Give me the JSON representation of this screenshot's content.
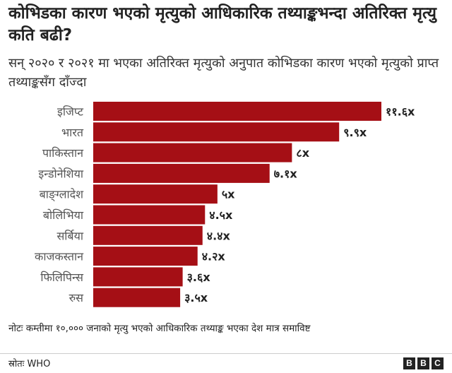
{
  "title": "कोभिडका कारण भएको मृत्युको आधिकारिक तथ्याङ्कभन्दा अतिरिक्त मृत्यु कति बढी?",
  "subtitle": "सन् २०२० र २०२१ मा भएका अतिरिक्त मृत्युको अनुपात कोभिडका कारण भएको मृत्युको प्राप्त तथ्याङ्कसँग दाँज्दा",
  "note": "नोटः कम्तीमा १०,००० जनाको मृत्यु भएको आधिकारिक तथ्याङ्क भएका देश मात्र समाविष्ट",
  "source": "स्रोतः WHO",
  "logo": [
    "B",
    "B",
    "C"
  ],
  "colors": {
    "bar": "#A50F15"
  },
  "chart_data": {
    "type": "bar",
    "orientation": "horizontal",
    "categories": [
      "इजिप्ट",
      "भारत",
      "पाकिस्तान",
      "इन्डोनेशिया",
      "बाङ्ग्लादेश",
      "बोलिभिया",
      "सर्बिया",
      "काजकस्तान",
      "फिलिपिन्स",
      "रुस"
    ],
    "values": [
      11.6,
      9.9,
      8,
      7.1,
      5,
      4.5,
      4.4,
      4.2,
      3.6,
      3.5
    ],
    "value_labels": [
      "११.६x",
      "९.९x",
      "८x",
      "७.१x",
      "५x",
      "४.५x",
      "४.४x",
      "४.२x",
      "३.६x",
      "३.५x"
    ],
    "xlim": [
      0,
      11.6
    ]
  }
}
